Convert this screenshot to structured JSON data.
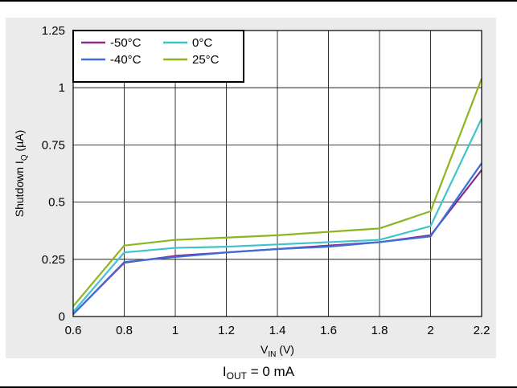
{
  "caption": {
    "main": "I",
    "sub": "OUT",
    "rest": " = 0 mA"
  },
  "chart_data": {
    "type": "line",
    "xlabel": "V_IN (V)",
    "xlabel_parts": {
      "main": "V",
      "sub": "IN",
      "rest": " (V)"
    },
    "ylabel": "Shutdown I_Q (µA)",
    "ylabel_parts": {
      "main": "Shutdown I",
      "sub": "Q",
      "rest": " (µA)"
    },
    "xlim": [
      0.6,
      2.2
    ],
    "ylim": [
      0,
      1.25
    ],
    "x_ticks": [
      "0.6",
      "0.8",
      "1",
      "1.2",
      "1.4",
      "1.6",
      "1.8",
      "2",
      "2.2"
    ],
    "y_ticks": [
      "0",
      "0.25",
      "0.5",
      "0.75",
      "1",
      "1.25"
    ],
    "grid": true,
    "legend_position": "top-left",
    "x": [
      0.6,
      0.8,
      1.0,
      1.2,
      1.4,
      1.6,
      1.8,
      2.0,
      2.2
    ],
    "series": [
      {
        "name": "-50°C",
        "color": "#8b2a8a",
        "values": [
          0.01,
          0.235,
          0.265,
          0.28,
          0.295,
          0.31,
          0.325,
          0.355,
          0.64
        ]
      },
      {
        "name": "-40°C",
        "color": "#3b6fd9",
        "values": [
          0.01,
          0.238,
          0.26,
          0.28,
          0.295,
          0.305,
          0.325,
          0.35,
          0.67
        ]
      },
      {
        "name": "0°C",
        "color": "#3fc4cc",
        "values": [
          0.02,
          0.28,
          0.3,
          0.305,
          0.315,
          0.325,
          0.335,
          0.395,
          0.865
        ]
      },
      {
        "name": "25°C",
        "color": "#8db51e",
        "values": [
          0.045,
          0.31,
          0.335,
          0.345,
          0.355,
          0.37,
          0.385,
          0.46,
          1.04
        ]
      }
    ]
  }
}
